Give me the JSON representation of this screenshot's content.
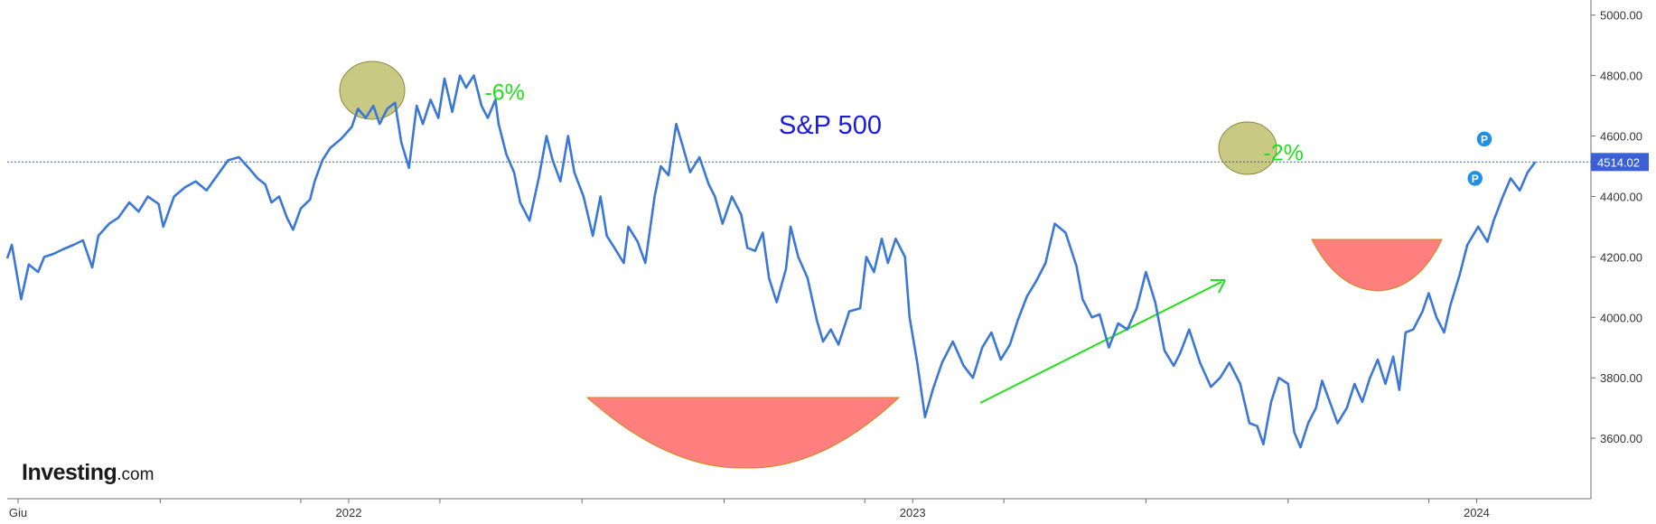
{
  "brand": {
    "name": "Investing",
    "suffix": ".com"
  },
  "chart_data": {
    "type": "line",
    "title": "S&P 500",
    "xlabel": "",
    "ylabel": "",
    "ylim": [
      3400,
      5050
    ],
    "xlim": [
      "2021-05-25",
      "2024-03-15"
    ],
    "y_ticks": [
      "3600.00",
      "3800.00",
      "4000.00",
      "4200.00",
      "4400.00",
      "4600.00",
      "4800.00",
      "5000.00"
    ],
    "x_ticks": [
      {
        "date": "2021-06-01",
        "label": "Giu"
      },
      {
        "date": "2021-09-01",
        "label": ""
      },
      {
        "date": "2021-12-01",
        "label": ""
      },
      {
        "date": "2022-01-01",
        "label": "2022"
      },
      {
        "date": "2022-03-01",
        "label": ""
      },
      {
        "date": "2022-06-01",
        "label": ""
      },
      {
        "date": "2022-09-01",
        "label": ""
      },
      {
        "date": "2022-12-01",
        "label": ""
      },
      {
        "date": "2023-01-01",
        "label": "2023"
      },
      {
        "date": "2023-03-01",
        "label": ""
      },
      {
        "date": "2023-06-01",
        "label": ""
      },
      {
        "date": "2023-09-01",
        "label": ""
      },
      {
        "date": "2023-12-01",
        "label": ""
      },
      {
        "date": "2024-01-01",
        "label": "2024"
      }
    ],
    "grid": false,
    "last_price": {
      "value": 4514.02,
      "label": "4514.02"
    },
    "series": [
      {
        "color": "#3a77d6",
        "points": [
          [
            "2021-05-25",
            4195
          ],
          [
            "2021-05-28",
            4240
          ],
          [
            "2021-06-03",
            4060
          ],
          [
            "2021-06-08",
            4175
          ],
          [
            "2021-06-14",
            4150
          ],
          [
            "2021-06-18",
            4200
          ],
          [
            "2021-06-24",
            4210
          ],
          [
            "2021-06-30",
            4225
          ],
          [
            "2021-07-07",
            4240
          ],
          [
            "2021-07-13",
            4255
          ],
          [
            "2021-07-19",
            4165
          ],
          [
            "2021-07-23",
            4270
          ],
          [
            "2021-07-30",
            4310
          ],
          [
            "2021-08-05",
            4330
          ],
          [
            "2021-08-12",
            4380
          ],
          [
            "2021-08-18",
            4350
          ],
          [
            "2021-08-24",
            4400
          ],
          [
            "2021-08-31",
            4375
          ],
          [
            "2021-09-03",
            4300
          ],
          [
            "2021-09-10",
            4400
          ],
          [
            "2021-09-17",
            4430
          ],
          [
            "2021-09-24",
            4450
          ],
          [
            "2021-10-01",
            4420
          ],
          [
            "2021-10-08",
            4470
          ],
          [
            "2021-10-15",
            4520
          ],
          [
            "2021-10-22",
            4530
          ],
          [
            "2021-10-29",
            4490
          ],
          [
            "2021-11-03",
            4460
          ],
          [
            "2021-11-08",
            4440
          ],
          [
            "2021-11-12",
            4380
          ],
          [
            "2021-11-17",
            4400
          ],
          [
            "2021-11-22",
            4330
          ],
          [
            "2021-11-26",
            4290
          ],
          [
            "2021-12-01",
            4360
          ],
          [
            "2021-12-07",
            4390
          ],
          [
            "2021-12-10",
            4450
          ],
          [
            "2021-12-15",
            4520
          ],
          [
            "2021-12-20",
            4560
          ],
          [
            "2021-12-27",
            4590
          ],
          [
            "2022-01-03",
            4630
          ],
          [
            "2022-01-07",
            4690
          ],
          [
            "2022-01-12",
            4660
          ],
          [
            "2022-01-17",
            4700
          ],
          [
            "2022-01-21",
            4640
          ],
          [
            "2022-01-26",
            4690
          ],
          [
            "2022-01-31",
            4710
          ],
          [
            "2022-02-04",
            4580
          ],
          [
            "2022-02-09",
            4495
          ],
          [
            "2022-02-14",
            4700
          ],
          [
            "2022-02-18",
            4640
          ],
          [
            "2022-02-23",
            4720
          ],
          [
            "2022-02-28",
            4660
          ],
          [
            "2022-03-04",
            4790
          ],
          [
            "2022-03-09",
            4680
          ],
          [
            "2022-03-14",
            4800
          ],
          [
            "2022-03-18",
            4760
          ],
          [
            "2022-03-23",
            4800
          ],
          [
            "2022-03-28",
            4700
          ],
          [
            "2022-04-01",
            4660
          ],
          [
            "2022-04-06",
            4720
          ],
          [
            "2022-04-08",
            4640
          ],
          [
            "2022-04-13",
            4540
          ],
          [
            "2022-04-18",
            4480
          ],
          [
            "2022-04-22",
            4380
          ],
          [
            "2022-04-28",
            4320
          ],
          [
            "2022-05-04",
            4460
          ],
          [
            "2022-05-09",
            4600
          ],
          [
            "2022-05-13",
            4520
          ],
          [
            "2022-05-18",
            4450
          ],
          [
            "2022-05-23",
            4600
          ],
          [
            "2022-05-27",
            4480
          ],
          [
            "2022-06-02",
            4400
          ],
          [
            "2022-06-08",
            4270
          ],
          [
            "2022-06-13",
            4400
          ],
          [
            "2022-06-17",
            4270
          ],
          [
            "2022-06-22",
            4230
          ],
          [
            "2022-06-28",
            4180
          ],
          [
            "2022-07-01",
            4300
          ],
          [
            "2022-07-07",
            4250
          ],
          [
            "2022-07-12",
            4180
          ],
          [
            "2022-07-18",
            4400
          ],
          [
            "2022-07-22",
            4500
          ],
          [
            "2022-07-27",
            4470
          ],
          [
            "2022-08-01",
            4640
          ],
          [
            "2022-08-05",
            4570
          ],
          [
            "2022-08-10",
            4480
          ],
          [
            "2022-08-16",
            4530
          ],
          [
            "2022-08-22",
            4440
          ],
          [
            "2022-08-26",
            4400
          ],
          [
            "2022-08-31",
            4310
          ],
          [
            "2022-09-06",
            4400
          ],
          [
            "2022-09-12",
            4340
          ],
          [
            "2022-09-16",
            4230
          ],
          [
            "2022-09-21",
            4220
          ],
          [
            "2022-09-26",
            4280
          ],
          [
            "2022-09-30",
            4130
          ],
          [
            "2022-10-05",
            4050
          ],
          [
            "2022-10-11",
            4160
          ],
          [
            "2022-10-14",
            4300
          ],
          [
            "2022-10-19",
            4200
          ],
          [
            "2022-10-25",
            4130
          ],
          [
            "2022-10-31",
            3990
          ],
          [
            "2022-11-04",
            3920
          ],
          [
            "2022-11-09",
            3960
          ],
          [
            "2022-11-14",
            3910
          ],
          [
            "2022-11-21",
            4020
          ],
          [
            "2022-11-28",
            4030
          ],
          [
            "2022-12-02",
            4200
          ],
          [
            "2022-12-07",
            4150
          ],
          [
            "2022-12-12",
            4260
          ],
          [
            "2022-12-16",
            4180
          ],
          [
            "2022-12-21",
            4260
          ],
          [
            "2022-12-27",
            4200
          ],
          [
            "2022-12-30",
            4000
          ],
          [
            "2023-01-04",
            3850
          ],
          [
            "2023-01-09",
            3670
          ],
          [
            "2023-01-14",
            3760
          ],
          [
            "2023-01-20",
            3850
          ],
          [
            "2023-01-27",
            3920
          ],
          [
            "2023-02-03",
            3840
          ],
          [
            "2023-02-09",
            3800
          ],
          [
            "2023-02-15",
            3900
          ],
          [
            "2023-02-21",
            3950
          ],
          [
            "2023-02-27",
            3860
          ],
          [
            "2023-03-05",
            3910
          ],
          [
            "2023-03-10",
            3990
          ],
          [
            "2023-03-16",
            4070
          ],
          [
            "2023-03-22",
            4120
          ],
          [
            "2023-03-28",
            4180
          ],
          [
            "2023-04-03",
            4310
          ],
          [
            "2023-04-10",
            4280
          ],
          [
            "2023-04-17",
            4170
          ],
          [
            "2023-04-21",
            4060
          ],
          [
            "2023-04-27",
            4000
          ],
          [
            "2023-05-02",
            4010
          ],
          [
            "2023-05-08",
            3900
          ],
          [
            "2023-05-14",
            3980
          ],
          [
            "2023-05-20",
            3960
          ],
          [
            "2023-05-26",
            4030
          ],
          [
            "2023-06-01",
            4150
          ],
          [
            "2023-06-07",
            4050
          ],
          [
            "2023-06-13",
            3890
          ],
          [
            "2023-06-19",
            3840
          ],
          [
            "2023-06-23",
            3880
          ],
          [
            "2023-06-29",
            3960
          ],
          [
            "2023-07-06",
            3850
          ],
          [
            "2023-07-13",
            3770
          ],
          [
            "2023-07-19",
            3800
          ],
          [
            "2023-07-25",
            3850
          ],
          [
            "2023-08-01",
            3780
          ],
          [
            "2023-08-07",
            3650
          ],
          [
            "2023-08-12",
            3640
          ],
          [
            "2023-08-16",
            3580
          ],
          [
            "2023-08-21",
            3720
          ],
          [
            "2023-08-26",
            3800
          ],
          [
            "2023-09-01",
            3780
          ],
          [
            "2023-09-05",
            3620
          ],
          [
            "2023-09-09",
            3570
          ],
          [
            "2023-09-14",
            3650
          ],
          [
            "2023-09-19",
            3700
          ],
          [
            "2023-09-23",
            3790
          ],
          [
            "2023-09-28",
            3720
          ],
          [
            "2023-10-03",
            3650
          ],
          [
            "2023-10-09",
            3700
          ],
          [
            "2023-10-14",
            3780
          ],
          [
            "2023-10-19",
            3720
          ],
          [
            "2023-10-24",
            3800
          ],
          [
            "2023-10-29",
            3860
          ],
          [
            "2023-11-03",
            3780
          ],
          [
            "2023-11-08",
            3870
          ],
          [
            "2023-11-12",
            3760
          ],
          [
            "2023-11-16",
            3950
          ],
          [
            "2023-11-21",
            3960
          ],
          [
            "2023-11-27",
            4020
          ],
          [
            "2023-12-01",
            4080
          ],
          [
            "2023-12-06",
            4000
          ],
          [
            "2023-12-11",
            3950
          ],
          [
            "2023-12-15",
            4040
          ],
          [
            "2023-12-21",
            4140
          ],
          [
            "2023-12-26",
            4240
          ],
          [
            "2024-01-02",
            4300
          ],
          [
            "2024-01-08",
            4250
          ],
          [
            "2024-01-12",
            4320
          ],
          [
            "2024-01-18",
            4400
          ],
          [
            "2024-01-23",
            4460
          ],
          [
            "2024-01-29",
            4420
          ],
          [
            "2024-02-03",
            4480
          ],
          [
            "2024-02-08",
            4514
          ]
        ]
      }
    ],
    "annotations": [
      {
        "text": "-6%",
        "x": "2022-03-30",
        "y": 4720
      },
      {
        "text": "-2%",
        "x": "2023-08-16",
        "y": 4520
      },
      {
        "text": "P",
        "x": "2024-01-06",
        "y": 4590
      },
      {
        "text": "P",
        "x": "2023-12-31",
        "y": 4460
      }
    ]
  }
}
